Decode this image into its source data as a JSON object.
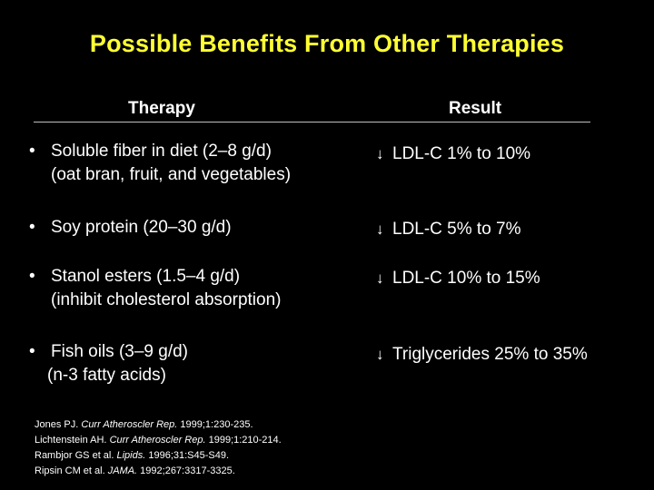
{
  "title": "Possible Benefits From Other Therapies",
  "columns": {
    "therapy": "Therapy",
    "result": "Result"
  },
  "rows": [
    {
      "bullet": "•",
      "therapy_line1": "Soluble fiber in diet (2–8 g/d)",
      "therapy_line2": "(oat bran, fruit, and vegetables)",
      "arrow": "↓",
      "result": "LDL-C 1% to 10%"
    },
    {
      "bullet": "•",
      "therapy_line1": "Soy protein (20–30 g/d)",
      "therapy_line2": "",
      "arrow": "↓",
      "result": "LDL-C 5% to 7%"
    },
    {
      "bullet": "•",
      "therapy_line1": "Stanol esters (1.5–4 g/d)",
      "therapy_line2": "(inhibit cholesterol absorption)",
      "arrow": "↓",
      "result": "LDL-C 10% to 15%"
    },
    {
      "bullet": "•",
      "therapy_line1": "Fish oils (3–9 g/d)",
      "therapy_line2": "(n-3 fatty acids)",
      "arrow": "↓",
      "result": "Triglycerides 25% to 35%"
    }
  ],
  "references": [
    {
      "authors": "Jones PJ.",
      "journal": "Curr Atheroscler Rep.",
      "citation": "1999;1:230-235."
    },
    {
      "authors": "Lichtenstein AH.",
      "journal": "Curr Atheroscler Rep.",
      "citation": "1999;1:210-214."
    },
    {
      "authors": "Rambjor GS et al.",
      "journal": "Lipids.",
      "citation": "1996;31:S45-S49."
    },
    {
      "authors": "Ripsin CM et al.",
      "journal": "JAMA.",
      "citation": "1992;267:3317-3325."
    }
  ],
  "colors": {
    "background": "#000000",
    "title": "#ffff33",
    "text": "#ffffff"
  }
}
